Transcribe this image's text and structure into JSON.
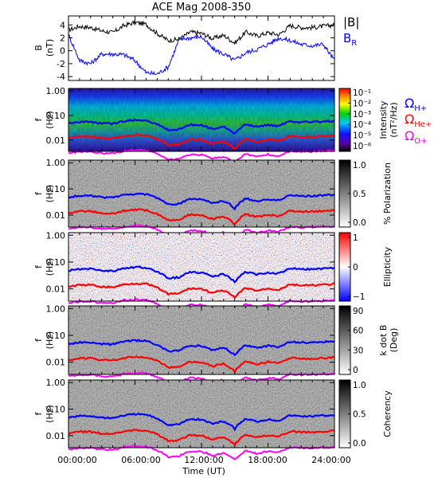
{
  "chart_data": {
    "type": "line",
    "title": "ACE Mag 2008-350",
    "xlabel": "Time (UT)",
    "x_tick_labels": [
      "00:00:00",
      "06:00:00",
      "12:00:00",
      "18:00:00",
      "24:00:00"
    ],
    "xlim_hours": [
      0,
      24
    ],
    "legend_b": [
      {
        "name": "|B|",
        "color": "#000000"
      },
      {
        "name": "B_R",
        "color": "#0000ff"
      }
    ],
    "legend_cyclotron": [
      {
        "symbol": "Ω",
        "sub": "H+",
        "color": "#0000ff"
      },
      {
        "symbol": "Ω",
        "sub": "He+",
        "color": "#ff0000"
      },
      {
        "symbol": "Ω",
        "sub": "O+",
        "color": "#ff00ff"
      }
    ],
    "panel_b": {
      "ylabel_top": "B",
      "ylabel_bottom": "(nT)",
      "ylim": [
        -4.6,
        5.4
      ],
      "y_ticks": [
        "4",
        "2",
        "0",
        "-2",
        "-4"
      ],
      "series": [
        {
          "name": "|B|",
          "color": "#000000",
          "x": [
            0,
            1,
            2,
            3,
            4,
            5,
            6,
            7,
            8,
            9,
            10,
            11,
            12,
            13,
            14,
            15,
            16,
            17,
            18,
            19,
            20,
            21,
            22,
            23,
            24
          ],
          "values": [
            3.2,
            3.8,
            3.6,
            3.1,
            2.8,
            3.9,
            4.4,
            4.1,
            2.7,
            1.6,
            1.8,
            2.9,
            2.7,
            1.9,
            2.4,
            1.2,
            2.9,
            2.3,
            2.8,
            2.5,
            3.9,
            3.6,
            3.6,
            3.8,
            4.0
          ]
        },
        {
          "name": "B_R",
          "color": "#0000ff",
          "x": [
            0,
            1,
            2,
            3,
            4,
            5,
            6,
            7,
            8,
            9,
            10,
            11,
            12,
            13,
            14,
            15,
            16,
            17,
            18,
            19,
            20,
            21,
            22,
            23,
            24
          ],
          "values": [
            2.5,
            -1.5,
            -2.0,
            -0.5,
            -0.5,
            -0.6,
            -1.5,
            -3.4,
            -3.6,
            -2.5,
            1.8,
            2.0,
            2.2,
            0.3,
            -0.5,
            -1.5,
            -0.3,
            0.2,
            1.0,
            2.0,
            1.6,
            1.0,
            0.8,
            1.0,
            -1.5
          ]
        }
      ]
    },
    "spectro_panels": [
      {
        "id": "intensity",
        "ylabel_top": "f",
        "ylabel_bottom": "(Hz)",
        "y_ticks": [
          "1.00",
          "0.10",
          "0.01"
        ],
        "colorbar": {
          "title": "Intensity",
          "subtitle": "(nT²/Hz)",
          "ticks": [
            "10⁻¹",
            "10⁻²",
            "10⁻³",
            "10⁻⁴",
            "10⁻⁵",
            "10⁻⁶"
          ],
          "scale": "rainbow"
        }
      },
      {
        "id": "polarization",
        "ylabel_top": "f",
        "ylabel_bottom": "(Hz)",
        "y_ticks": [
          "1.00",
          "0.10",
          "0.01"
        ],
        "colorbar": {
          "title": "% Polarization",
          "subtitle": "",
          "ticks": [
            "1.0",
            "0.5",
            "0.0"
          ],
          "scale": "gray"
        }
      },
      {
        "id": "ellipticity",
        "ylabel_top": "f",
        "ylabel_bottom": "(Hz)",
        "y_ticks": [
          "1.00",
          "0.10",
          "0.01"
        ],
        "colorbar": {
          "title": "Ellipticity",
          "subtitle": "",
          "ticks": [
            "1",
            "0",
            "−1"
          ],
          "scale": "bwr"
        }
      },
      {
        "id": "kdotb",
        "ylabel_top": "f",
        "ylabel_bottom": "(Hz)",
        "y_ticks": [
          "1.00",
          "0.10",
          "0.01"
        ],
        "colorbar": {
          "title": "k dot B",
          "subtitle": "(Deg)",
          "ticks": [
            "90",
            "60",
            "30",
            "0"
          ],
          "scale": "gray"
        }
      },
      {
        "id": "coherency",
        "ylabel_top": "f",
        "ylabel_bottom": "(Hz)",
        "y_ticks": [
          "1.00",
          "0.10",
          "0.01"
        ],
        "colorbar": {
          "title": "Coherency",
          "subtitle": "",
          "ticks": [
            "1.0",
            "0.5",
            "0.0"
          ],
          "scale": "gray"
        }
      }
    ],
    "cyclotron_freq_hz": {
      "x": [
        0,
        1,
        2,
        3,
        4,
        5,
        6,
        7,
        8,
        9,
        10,
        11,
        12,
        13,
        14,
        15,
        16,
        17,
        18,
        19,
        20,
        21,
        22,
        23,
        24
      ],
      "H+": [
        0.048,
        0.055,
        0.055,
        0.048,
        0.046,
        0.058,
        0.065,
        0.062,
        0.044,
        0.025,
        0.027,
        0.042,
        0.04,
        0.028,
        0.035,
        0.018,
        0.043,
        0.034,
        0.041,
        0.037,
        0.058,
        0.054,
        0.054,
        0.057,
        0.06
      ],
      "He+": [
        0.012,
        0.014,
        0.014,
        0.012,
        0.0115,
        0.0145,
        0.016,
        0.0155,
        0.011,
        0.0063,
        0.0068,
        0.0105,
        0.01,
        0.007,
        0.0088,
        0.0045,
        0.0108,
        0.0085,
        0.0103,
        0.0093,
        0.0145,
        0.0135,
        0.0135,
        0.0143,
        0.015
      ],
      "O+": [
        0.003,
        0.0034,
        0.0034,
        0.003,
        0.0029,
        0.0036,
        0.004,
        0.0039,
        0.0028,
        0.0016,
        0.0017,
        0.0026,
        0.0025,
        0.0018,
        0.0022,
        0.0012,
        0.0027,
        0.0021,
        0.0026,
        0.0023,
        0.0036,
        0.0034,
        0.0034,
        0.0036,
        0.0037
      ]
    }
  }
}
